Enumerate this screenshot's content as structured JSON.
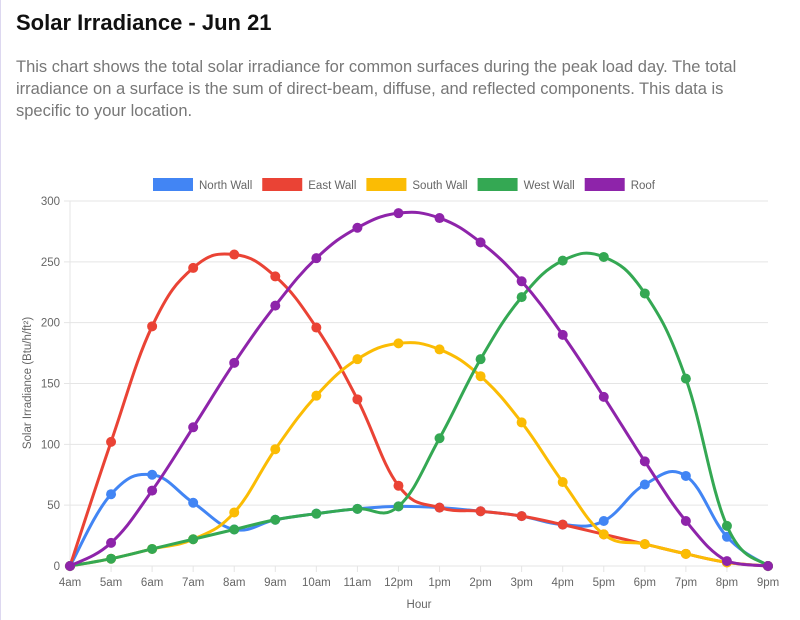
{
  "header": {
    "title": "Solar Irradiance - Jun 21",
    "description": "This chart shows the total solar irradiance for common surfaces during the peak load day. The total irradiance on a surface is the sum of direct-beam, diffuse, and reflected components. This data is specific to your location."
  },
  "chart_data": {
    "type": "line",
    "xlabel": "Hour",
    "ylabel": "Solar Irradiance (Btu/h/ft²)",
    "ylim": [
      0,
      300
    ],
    "yticks": [
      0,
      50,
      100,
      150,
      200,
      250,
      300
    ],
    "grid": true,
    "legend": "top",
    "categories": [
      "4am",
      "5am",
      "6am",
      "7am",
      "8am",
      "9am",
      "10am",
      "11am",
      "12pm",
      "1pm",
      "2pm",
      "3pm",
      "4pm",
      "5pm",
      "6pm",
      "7pm",
      "8pm",
      "9pm"
    ],
    "series": [
      {
        "name": "North Wall",
        "color": "#4285f4",
        "values": [
          0,
          59,
          75,
          52,
          30,
          38,
          43,
          47,
          49,
          48,
          45,
          41,
          34,
          37,
          67,
          74,
          24,
          0
        ]
      },
      {
        "name": "East Wall",
        "color": "#ea4335",
        "values": [
          0,
          102,
          197,
          245,
          256,
          238,
          196,
          137,
          66,
          48,
          45,
          41,
          34,
          26,
          18,
          10,
          3,
          0
        ]
      },
      {
        "name": "South Wall",
        "color": "#fbbc04",
        "values": [
          0,
          6,
          14,
          22,
          44,
          96,
          140,
          170,
          183,
          178,
          156,
          118,
          69,
          26,
          18,
          10,
          3,
          0
        ]
      },
      {
        "name": "West Wall",
        "color": "#34a853",
        "values": [
          0,
          6,
          14,
          22,
          30,
          38,
          43,
          47,
          49,
          105,
          170,
          221,
          251,
          254,
          224,
          154,
          33,
          0
        ]
      },
      {
        "name": "Roof",
        "color": "#8e24aa",
        "values": [
          0,
          19,
          62,
          114,
          167,
          214,
          253,
          278,
          290,
          286,
          266,
          234,
          190,
          139,
          86,
          37,
          4,
          0
        ]
      }
    ]
  }
}
